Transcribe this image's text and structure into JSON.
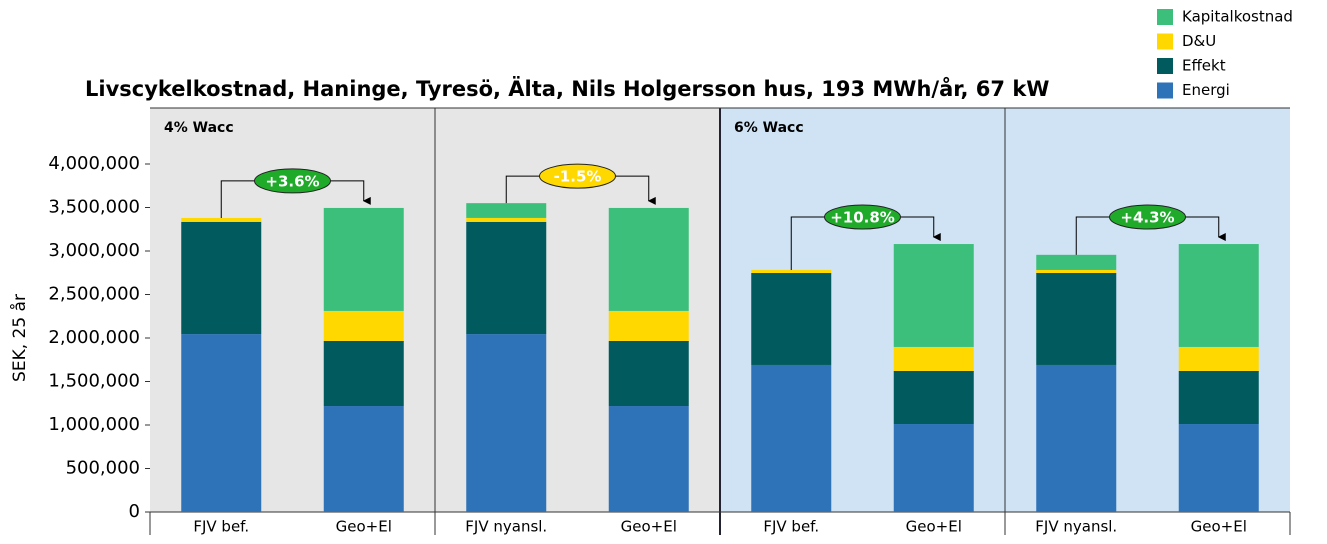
{
  "chart_data": {
    "type": "bar",
    "stacked": true,
    "title": "Livscykelkostnad, Haninge, Tyresö, Älta, Nils Holgersson hus, 193 MWh/år, 67 kW",
    "ylabel": "SEK, 25 år",
    "categories": [
      "FJV bef.",
      "Geo+El",
      "FJV nyansl.",
      "Geo+El",
      "FJV bef.",
      "Geo+El",
      "FJV nyansl.",
      "Geo+El"
    ],
    "series": [
      {
        "name": "Energi",
        "color": "#2e72b8",
        "values": [
          2045000,
          1218000,
          2045000,
          1218000,
          1690000,
          1011000,
          1690000,
          1011000
        ]
      },
      {
        "name": "Effekt",
        "color": "#005a5e",
        "values": [
          1290000,
          748000,
          1290000,
          748000,
          1057000,
          610000,
          1057000,
          610000
        ]
      },
      {
        "name": "D&U",
        "color": "#ffd800",
        "values": [
          45000,
          345000,
          45000,
          345000,
          35000,
          276000,
          35000,
          276000
        ]
      },
      {
        "name": "Kapitalkostnad",
        "color": "#3dbf7c",
        "values": [
          0,
          1184000,
          170000,
          1184000,
          0,
          1183000,
          174000,
          1183000
        ]
      }
    ],
    "ylim": [
      0,
      4000000
    ],
    "yticks": [
      0,
      {
        "value": 500000,
        "label": "500,000"
      },
      {
        "value": 1000000,
        "label": "1,000,000"
      },
      {
        "value": 1500000,
        "label": "1,500,000"
      },
      {
        "value": 2000000,
        "label": "2,000,000"
      },
      {
        "value": 2500000,
        "label": "2,500,000"
      },
      {
        "value": 3000000,
        "label": "3,000,000"
      },
      {
        "value": 3500000,
        "label": "3,500,000"
      },
      {
        "value": 4000000,
        "label": "4,000,000"
      }
    ],
    "panels": [
      {
        "label": "4% Wacc",
        "color": "#e6e6e6"
      },
      {
        "label": "6% Wacc",
        "color": "#cfe3f5"
      }
    ],
    "annotations": [
      {
        "label": "+3.6%",
        "color": "#1faa2a"
      },
      {
        "label": "-1.5%",
        "color": "#ffd800"
      },
      {
        "label": "+10.8%",
        "color": "#1faa2a"
      },
      {
        "label": "+4.3%",
        "color": "#1faa2a"
      }
    ],
    "legend": "top-right"
  }
}
